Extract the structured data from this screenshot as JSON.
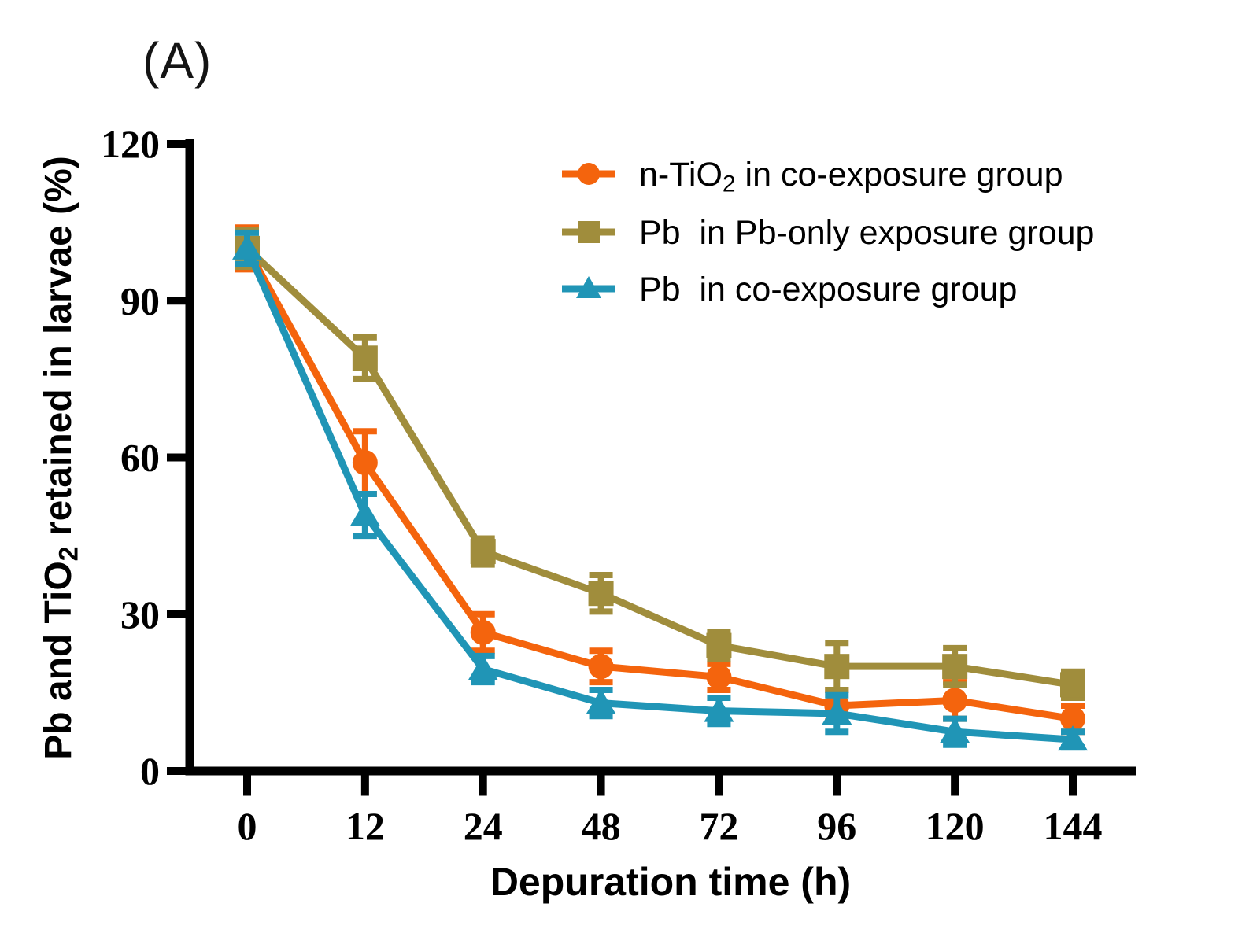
{
  "figure": {
    "panel_label": "(A)"
  },
  "chart_data": {
    "type": "line",
    "title": "",
    "xlabel": "Depuration time (h)",
    "ylabel": "Pb and TiO2 retained in larvae (%)",
    "ylabel_segments": [
      {
        "t": "Pb and TiO"
      },
      {
        "t": "2",
        "sub": true
      },
      {
        "t": " retained in larvae (%)"
      }
    ],
    "x_tick_labels": [
      "0",
      "12",
      "24",
      "48",
      "72",
      "96",
      "120",
      "144"
    ],
    "x_values_hours": [
      0,
      12,
      24,
      48,
      72,
      96,
      120,
      144
    ],
    "x_scale": "equally-spaced-categories",
    "y_ticks": [
      0,
      30,
      60,
      90,
      120
    ],
    "ylim": [
      0,
      120
    ],
    "grid": false,
    "legend_position": "top-right-inside",
    "axis_color": "#000000",
    "background": "#ffffff",
    "error_bars": "symmetric, with caps",
    "series": [
      {
        "name": "n-TiO2 in co-exposure group",
        "name_segments": [
          {
            "t": "n-TiO"
          },
          {
            "t": "2",
            "sub": true
          },
          {
            "t": " in co-exposure group"
          }
        ],
        "color": "#F4640D",
        "marker": "circle",
        "values": [
          100,
          59,
          26.5,
          20,
          18,
          12.5,
          13.5,
          10
        ],
        "errors": [
          4,
          6,
          3.5,
          3,
          2.5,
          3,
          3.5,
          2.5
        ]
      },
      {
        "name": "Pb in Pb-only exposure group",
        "name_segments": [
          {
            "t": "Pb  in Pb-only exposure group"
          }
        ],
        "color": "#A08D3C",
        "marker": "square",
        "values": [
          100,
          79,
          42,
          34,
          24,
          20,
          20,
          16.5
        ],
        "errors": [
          3.5,
          4,
          2.5,
          3.5,
          2.5,
          4.5,
          3.5,
          2.5
        ]
      },
      {
        "name": "Pb in co-exposure group",
        "name_segments": [
          {
            "t": "Pb  in co-exposure group"
          }
        ],
        "color": "#2095B6",
        "marker": "triangle",
        "values": [
          100,
          49,
          19.5,
          13,
          11.5,
          11,
          7.5,
          6
        ],
        "errors": [
          3,
          4,
          2.5,
          2.5,
          2.5,
          3.5,
          2.5,
          1.5
        ]
      }
    ]
  }
}
